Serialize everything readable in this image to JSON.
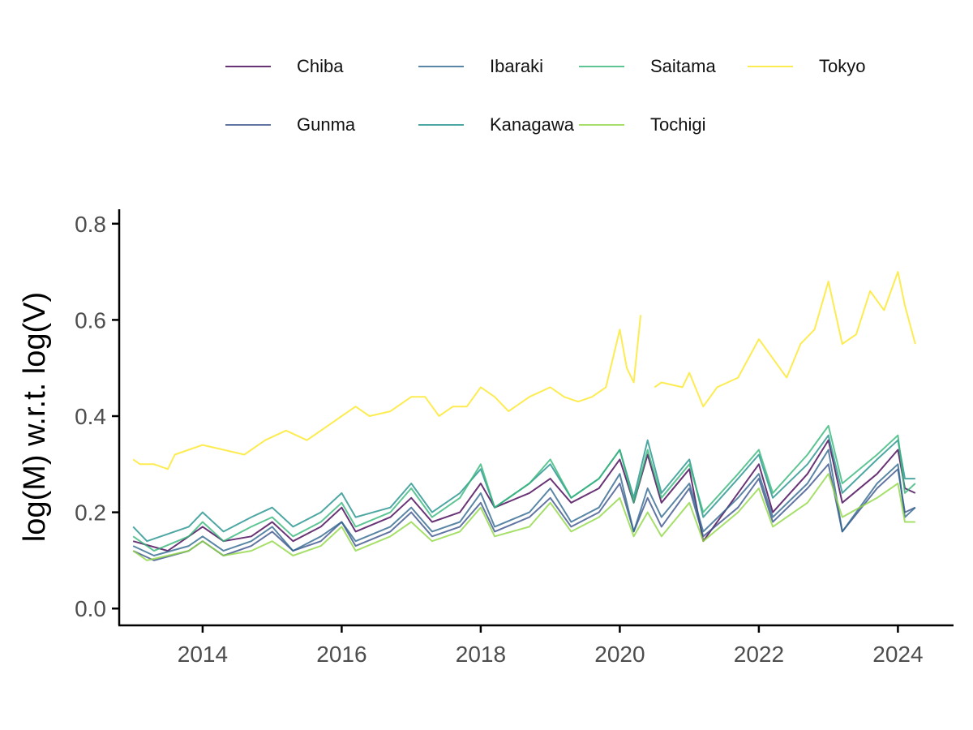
{
  "chart_data": {
    "type": "line",
    "title": "",
    "xlabel": "",
    "ylabel": "log(M) w.r.t. log(V)",
    "xlim": [
      2012.8,
      2024.8
    ],
    "ylim": [
      -0.035,
      0.83
    ],
    "x_ticks": [
      2014,
      2016,
      2018,
      2020,
      2022,
      2024
    ],
    "x_tick_labels": [
      "2014",
      "2016",
      "2018",
      "2020",
      "2022",
      "2024"
    ],
    "y_ticks": [
      0.0,
      0.2,
      0.4,
      0.6,
      0.8
    ],
    "y_tick_labels": [
      "0.0",
      "0.2",
      "0.4",
      "0.6",
      "0.8"
    ],
    "grid": false,
    "legend_position": "top",
    "series": [
      {
        "name": "Chiba",
        "color": "#440154",
        "points": [
          [
            2013.0,
            0.14
          ],
          [
            2013.5,
            0.12
          ],
          [
            2013.8,
            0.15
          ],
          [
            2014.0,
            0.17
          ],
          [
            2014.3,
            0.14
          ],
          [
            2014.7,
            0.15
          ],
          [
            2015.0,
            0.18
          ],
          [
            2015.3,
            0.14
          ],
          [
            2015.7,
            0.17
          ],
          [
            2016.0,
            0.21
          ],
          [
            2016.2,
            0.16
          ],
          [
            2016.7,
            0.19
          ],
          [
            2017.0,
            0.23
          ],
          [
            2017.3,
            0.18
          ],
          [
            2017.7,
            0.2
          ],
          [
            2018.0,
            0.26
          ],
          [
            2018.2,
            0.21
          ],
          [
            2018.7,
            0.24
          ],
          [
            2019.0,
            0.27
          ],
          [
            2019.3,
            0.22
          ],
          [
            2019.7,
            0.25
          ],
          [
            2020.0,
            0.31
          ],
          [
            2020.2,
            0.22
          ],
          [
            2020.4,
            0.32
          ],
          [
            2020.6,
            0.22
          ],
          [
            2021.0,
            0.29
          ],
          [
            2021.2,
            0.14
          ],
          [
            2021.7,
            0.24
          ],
          [
            2022.0,
            0.3
          ],
          [
            2022.2,
            0.2
          ],
          [
            2022.7,
            0.28
          ],
          [
            2023.0,
            0.35
          ],
          [
            2023.2,
            0.22
          ],
          [
            2023.7,
            0.28
          ],
          [
            2024.0,
            0.33
          ],
          [
            2024.1,
            0.25
          ],
          [
            2024.25,
            0.24
          ]
        ]
      },
      {
        "name": "Gunma",
        "color": "#3b528b",
        "points": [
          [
            2013.0,
            0.12
          ],
          [
            2013.3,
            0.1
          ],
          [
            2013.8,
            0.12
          ],
          [
            2014.0,
            0.14
          ],
          [
            2014.3,
            0.11
          ],
          [
            2014.7,
            0.13
          ],
          [
            2015.0,
            0.16
          ],
          [
            2015.3,
            0.12
          ],
          [
            2015.7,
            0.14
          ],
          [
            2016.0,
            0.18
          ],
          [
            2016.2,
            0.13
          ],
          [
            2016.7,
            0.16
          ],
          [
            2017.0,
            0.2
          ],
          [
            2017.3,
            0.15
          ],
          [
            2017.7,
            0.17
          ],
          [
            2018.0,
            0.22
          ],
          [
            2018.2,
            0.16
          ],
          [
            2018.7,
            0.19
          ],
          [
            2019.0,
            0.23
          ],
          [
            2019.3,
            0.17
          ],
          [
            2019.7,
            0.2
          ],
          [
            2020.0,
            0.26
          ],
          [
            2020.2,
            0.16
          ],
          [
            2020.4,
            0.23
          ],
          [
            2020.6,
            0.17
          ],
          [
            2021.0,
            0.25
          ],
          [
            2021.2,
            0.15
          ],
          [
            2021.7,
            0.21
          ],
          [
            2022.0,
            0.27
          ],
          [
            2022.2,
            0.18
          ],
          [
            2022.7,
            0.25
          ],
          [
            2023.0,
            0.3
          ],
          [
            2023.2,
            0.16
          ],
          [
            2023.7,
            0.25
          ],
          [
            2024.0,
            0.29
          ],
          [
            2024.1,
            0.2
          ],
          [
            2024.25,
            0.21
          ]
        ]
      },
      {
        "name": "Ibaraki",
        "color": "#31688e",
        "points": [
          [
            2013.0,
            0.13
          ],
          [
            2013.3,
            0.11
          ],
          [
            2013.8,
            0.13
          ],
          [
            2014.0,
            0.15
          ],
          [
            2014.3,
            0.12
          ],
          [
            2014.7,
            0.14
          ],
          [
            2015.0,
            0.17
          ],
          [
            2015.3,
            0.12
          ],
          [
            2015.7,
            0.15
          ],
          [
            2016.0,
            0.18
          ],
          [
            2016.2,
            0.14
          ],
          [
            2016.7,
            0.17
          ],
          [
            2017.0,
            0.21
          ],
          [
            2017.3,
            0.16
          ],
          [
            2017.7,
            0.18
          ],
          [
            2018.0,
            0.24
          ],
          [
            2018.2,
            0.17
          ],
          [
            2018.7,
            0.2
          ],
          [
            2019.0,
            0.25
          ],
          [
            2019.3,
            0.18
          ],
          [
            2019.7,
            0.21
          ],
          [
            2020.0,
            0.28
          ],
          [
            2020.2,
            0.16
          ],
          [
            2020.4,
            0.25
          ],
          [
            2020.6,
            0.19
          ],
          [
            2021.0,
            0.26
          ],
          [
            2021.2,
            0.16
          ],
          [
            2021.7,
            0.23
          ],
          [
            2022.0,
            0.28
          ],
          [
            2022.2,
            0.19
          ],
          [
            2022.7,
            0.26
          ],
          [
            2023.0,
            0.33
          ],
          [
            2023.2,
            0.16
          ],
          [
            2023.7,
            0.26
          ],
          [
            2024.0,
            0.3
          ],
          [
            2024.1,
            0.19
          ],
          [
            2024.25,
            0.21
          ]
        ]
      },
      {
        "name": "Kanagawa",
        "color": "#21918c",
        "points": [
          [
            2013.0,
            0.17
          ],
          [
            2013.2,
            0.14
          ],
          [
            2013.8,
            0.17
          ],
          [
            2014.0,
            0.2
          ],
          [
            2014.3,
            0.16
          ],
          [
            2014.7,
            0.19
          ],
          [
            2015.0,
            0.21
          ],
          [
            2015.3,
            0.17
          ],
          [
            2015.7,
            0.2
          ],
          [
            2016.0,
            0.24
          ],
          [
            2016.2,
            0.19
          ],
          [
            2016.7,
            0.21
          ],
          [
            2017.0,
            0.26
          ],
          [
            2017.3,
            0.2
          ],
          [
            2017.7,
            0.24
          ],
          [
            2018.0,
            0.29
          ],
          [
            2018.2,
            0.21
          ],
          [
            2018.7,
            0.26
          ],
          [
            2019.0,
            0.3
          ],
          [
            2019.3,
            0.23
          ],
          [
            2019.7,
            0.27
          ],
          [
            2020.0,
            0.33
          ],
          [
            2020.2,
            0.23
          ],
          [
            2020.4,
            0.35
          ],
          [
            2020.6,
            0.24
          ],
          [
            2021.0,
            0.31
          ],
          [
            2021.2,
            0.19
          ],
          [
            2021.7,
            0.27
          ],
          [
            2022.0,
            0.32
          ],
          [
            2022.2,
            0.23
          ],
          [
            2022.7,
            0.3
          ],
          [
            2023.0,
            0.36
          ],
          [
            2023.2,
            0.24
          ],
          [
            2023.7,
            0.31
          ],
          [
            2024.0,
            0.35
          ],
          [
            2024.1,
            0.27
          ],
          [
            2024.25,
            0.27
          ]
        ]
      },
      {
        "name": "Saitama",
        "color": "#35b779",
        "points": [
          [
            2013.0,
            0.15
          ],
          [
            2013.3,
            0.12
          ],
          [
            2013.8,
            0.15
          ],
          [
            2014.0,
            0.18
          ],
          [
            2014.3,
            0.14
          ],
          [
            2014.7,
            0.17
          ],
          [
            2015.0,
            0.19
          ],
          [
            2015.3,
            0.15
          ],
          [
            2015.7,
            0.18
          ],
          [
            2016.0,
            0.22
          ],
          [
            2016.2,
            0.17
          ],
          [
            2016.7,
            0.2
          ],
          [
            2017.0,
            0.25
          ],
          [
            2017.3,
            0.19
          ],
          [
            2017.7,
            0.23
          ],
          [
            2018.0,
            0.3
          ],
          [
            2018.2,
            0.21
          ],
          [
            2018.7,
            0.26
          ],
          [
            2019.0,
            0.31
          ],
          [
            2019.3,
            0.23
          ],
          [
            2019.7,
            0.27
          ],
          [
            2020.0,
            0.33
          ],
          [
            2020.2,
            0.22
          ],
          [
            2020.4,
            0.33
          ],
          [
            2020.6,
            0.23
          ],
          [
            2021.0,
            0.3
          ],
          [
            2021.2,
            0.2
          ],
          [
            2021.7,
            0.28
          ],
          [
            2022.0,
            0.33
          ],
          [
            2022.2,
            0.24
          ],
          [
            2022.7,
            0.32
          ],
          [
            2023.0,
            0.38
          ],
          [
            2023.2,
            0.26
          ],
          [
            2023.7,
            0.32
          ],
          [
            2024.0,
            0.36
          ],
          [
            2024.1,
            0.24
          ],
          [
            2024.25,
            0.26
          ]
        ]
      },
      {
        "name": "Tochigi",
        "color": "#90d743",
        "points": [
          [
            2013.0,
            0.12
          ],
          [
            2013.2,
            0.1
          ],
          [
            2013.8,
            0.12
          ],
          [
            2014.0,
            0.14
          ],
          [
            2014.3,
            0.11
          ],
          [
            2014.7,
            0.12
          ],
          [
            2015.0,
            0.14
          ],
          [
            2015.3,
            0.11
          ],
          [
            2015.7,
            0.13
          ],
          [
            2016.0,
            0.17
          ],
          [
            2016.2,
            0.12
          ],
          [
            2016.7,
            0.15
          ],
          [
            2017.0,
            0.18
          ],
          [
            2017.3,
            0.14
          ],
          [
            2017.7,
            0.16
          ],
          [
            2018.0,
            0.21
          ],
          [
            2018.2,
            0.15
          ],
          [
            2018.7,
            0.17
          ],
          [
            2019.0,
            0.22
          ],
          [
            2019.3,
            0.16
          ],
          [
            2019.7,
            0.19
          ],
          [
            2020.0,
            0.23
          ],
          [
            2020.2,
            0.15
          ],
          [
            2020.4,
            0.2
          ],
          [
            2020.6,
            0.15
          ],
          [
            2021.0,
            0.22
          ],
          [
            2021.2,
            0.14
          ],
          [
            2021.7,
            0.2
          ],
          [
            2022.0,
            0.25
          ],
          [
            2022.2,
            0.17
          ],
          [
            2022.7,
            0.22
          ],
          [
            2023.0,
            0.28
          ],
          [
            2023.2,
            0.19
          ],
          [
            2023.7,
            0.23
          ],
          [
            2024.0,
            0.26
          ],
          [
            2024.1,
            0.18
          ],
          [
            2024.25,
            0.18
          ]
        ]
      },
      {
        "name": "Tokyo",
        "color": "#fde725",
        "points": [
          [
            2013.0,
            0.31
          ],
          [
            2013.1,
            0.3
          ],
          [
            2013.3,
            0.3
          ],
          [
            2013.5,
            0.29
          ],
          [
            2013.6,
            0.32
          ],
          [
            2013.8,
            0.33
          ],
          [
            2014.0,
            0.34
          ],
          [
            2014.3,
            0.33
          ],
          [
            2014.6,
            0.32
          ],
          [
            2014.9,
            0.35
          ],
          [
            2015.2,
            0.37
          ],
          [
            2015.5,
            0.35
          ],
          [
            2015.8,
            0.38
          ],
          [
            2016.0,
            0.4
          ],
          [
            2016.2,
            0.42
          ],
          [
            2016.4,
            0.4
          ],
          [
            2016.7,
            0.41
          ],
          [
            2017.0,
            0.44
          ],
          [
            2017.2,
            0.44
          ],
          [
            2017.4,
            0.4
          ],
          [
            2017.6,
            0.42
          ],
          [
            2017.8,
            0.42
          ],
          [
            2018.0,
            0.46
          ],
          [
            2018.2,
            0.44
          ],
          [
            2018.4,
            0.41
          ],
          [
            2018.7,
            0.44
          ],
          [
            2019.0,
            0.46
          ],
          [
            2019.2,
            0.44
          ],
          [
            2019.4,
            0.43
          ],
          [
            2019.6,
            0.44
          ],
          [
            2019.8,
            0.46
          ],
          [
            2020.0,
            0.58
          ],
          [
            2020.1,
            0.5
          ],
          [
            2020.2,
            0.47
          ],
          [
            2020.3,
            0.61
          ],
          null,
          [
            2020.5,
            0.46
          ],
          [
            2020.6,
            0.47
          ],
          [
            2020.9,
            0.46
          ],
          [
            2021.0,
            0.49
          ],
          [
            2021.2,
            0.42
          ],
          [
            2021.4,
            0.46
          ],
          [
            2021.7,
            0.48
          ],
          [
            2022.0,
            0.56
          ],
          [
            2022.2,
            0.52
          ],
          [
            2022.4,
            0.48
          ],
          [
            2022.6,
            0.55
          ],
          [
            2022.8,
            0.58
          ],
          [
            2023.0,
            0.68
          ],
          [
            2023.2,
            0.55
          ],
          [
            2023.4,
            0.57
          ],
          [
            2023.6,
            0.66
          ],
          [
            2023.8,
            0.62
          ],
          [
            2024.0,
            0.7
          ],
          [
            2024.1,
            0.63
          ],
          [
            2024.25,
            0.55
          ]
        ]
      }
    ]
  }
}
